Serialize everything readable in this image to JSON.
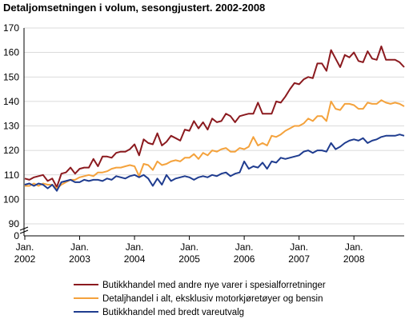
{
  "chart_data": {
    "type": "line",
    "title": "Detaljomsetningen i volum, sesongjustert. 2002-2008",
    "xlabel": "",
    "ylabel": "",
    "ylim": [
      0,
      170
    ],
    "y_axis_break": [
      0,
      90
    ],
    "yticks": [
      0,
      90,
      100,
      110,
      120,
      130,
      140,
      150,
      160,
      170
    ],
    "grid": true,
    "legend_position": "bottom",
    "xticks": [
      {
        "month": 0,
        "line1": "Jan.",
        "line2": "2002"
      },
      {
        "month": 12,
        "line1": "Jan.",
        "line2": "2003"
      },
      {
        "month": 24,
        "line1": "Jan.",
        "line2": "2004"
      },
      {
        "month": 36,
        "line1": "Jan.",
        "line2": "2005"
      },
      {
        "month": 48,
        "line1": "Jan.",
        "line2": "2006"
      },
      {
        "month": 60,
        "line1": "Jan.",
        "line2": "2007"
      },
      {
        "month": 72,
        "line1": "Jan.",
        "line2": "2008"
      }
    ],
    "x_period": "monthly, Jan. 2002 to Nov. 2008",
    "series": [
      {
        "name": "Butikkhandel med andre nye varer i spesialforretninger",
        "color": "#8b1a1f",
        "values": [
          108.5,
          108,
          109,
          109.5,
          110,
          107.5,
          108.5,
          105,
          110.5,
          111,
          113,
          110.5,
          112.5,
          113,
          113,
          116.5,
          113.5,
          117.5,
          117.5,
          117,
          119,
          119.5,
          119.5,
          120.5,
          122.5,
          118,
          124.5,
          123,
          122.5,
          127,
          122,
          123.5,
          126,
          125,
          124,
          128.5,
          128,
          132,
          129,
          131.5,
          128.5,
          133,
          131.5,
          132,
          135,
          134,
          131.5,
          134,
          134.5,
          135,
          135,
          139.5,
          135,
          135,
          135,
          140,
          139.5,
          142,
          145,
          147.5,
          147,
          149,
          150,
          149.5,
          155.5,
          155.5,
          152.5,
          161,
          157.5,
          154,
          159,
          158,
          160,
          156.5,
          156,
          160.5,
          157.5,
          157,
          162.5,
          157,
          157,
          157,
          156,
          154
        ]
      },
      {
        "name": "Detaljhandel i alt, eksklusiv motorkjøretøyer og bensin",
        "color": "#f4a23c",
        "values": [
          105.5,
          105.5,
          106.5,
          105.5,
          106.5,
          106,
          106,
          104.5,
          106,
          107,
          108,
          108,
          109,
          109.5,
          110,
          109.5,
          111,
          111,
          111.5,
          112.5,
          113,
          113,
          113.5,
          114,
          113.5,
          109.5,
          114.5,
          114,
          112,
          115.5,
          114,
          114.5,
          115.5,
          116,
          115.5,
          117,
          117,
          118.5,
          116.5,
          119,
          118,
          120,
          119.5,
          120.5,
          121,
          119.5,
          119.5,
          121,
          120.5,
          121.5,
          125.5,
          122,
          123,
          122,
          126,
          125.5,
          126.5,
          128,
          129,
          130,
          130,
          131,
          133,
          132,
          134,
          134,
          132,
          140,
          137,
          136.5,
          139,
          139,
          138.5,
          137,
          137,
          139.5,
          139,
          139,
          140.5,
          139.5,
          139,
          139.5,
          139,
          138
        ]
      },
      {
        "name": "Butikkhandel med bredt vareutvalg",
        "color": "#1f3c8f",
        "values": [
          106,
          106.5,
          105.5,
          106.5,
          106,
          104.5,
          106,
          103.5,
          107,
          107.5,
          108,
          107,
          107,
          108,
          107.5,
          108,
          108,
          107.5,
          108.5,
          108,
          109.5,
          109,
          108.5,
          109.5,
          110,
          109,
          110,
          108.5,
          105.5,
          108.5,
          106,
          110,
          107.5,
          108.5,
          109,
          109.5,
          109,
          108,
          109,
          109.5,
          109,
          110,
          109.5,
          110.5,
          111,
          109.5,
          110.5,
          111,
          115.5,
          112.5,
          113.5,
          113,
          115,
          112.5,
          115.5,
          115,
          117,
          116.5,
          117,
          117.5,
          118,
          119.5,
          120,
          119,
          120,
          120,
          119.5,
          123,
          120.5,
          121.5,
          123,
          124,
          124.5,
          124,
          125,
          123,
          124,
          124.5,
          125.5,
          126,
          126,
          126,
          126.5,
          126
        ]
      }
    ]
  }
}
